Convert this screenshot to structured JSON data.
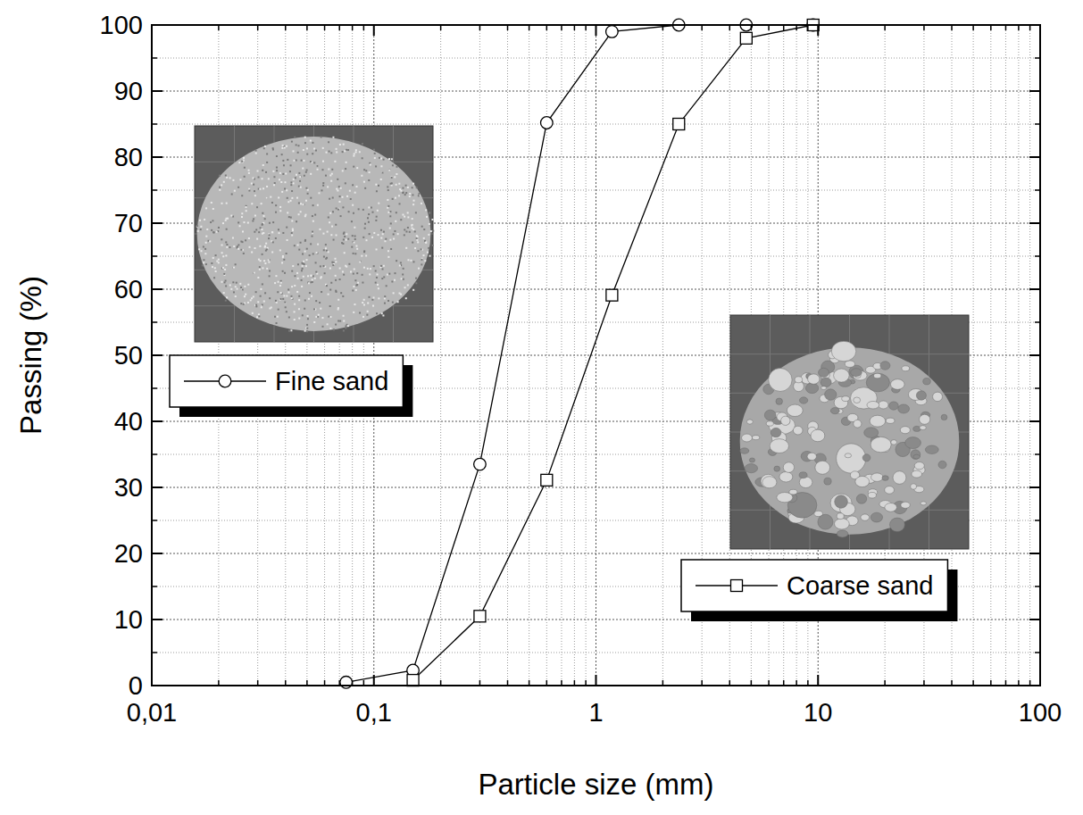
{
  "chart_data": {
    "type": "line",
    "x_label": "Particle size (mm)",
    "y_label": "Passing (%)",
    "log": "x",
    "grid": true,
    "legend": "upper left",
    "xlim": [
      0.01,
      100
    ],
    "xticks": [
      {
        "value": 0.01,
        "label": "0,01"
      },
      {
        "value": 0.1,
        "label": "0,1"
      },
      1,
      10,
      100
    ],
    "ylim": [
      0,
      100
    ],
    "yticks": [
      0,
      10,
      20,
      30,
      40,
      50,
      60,
      70,
      80,
      90,
      100
    ],
    "x": [
      0.075,
      0.15,
      0.3,
      0.6,
      1.18,
      2.36,
      4.75,
      9.5
    ],
    "series": [
      {
        "name": "Fine sand",
        "color": "#000000",
        "marker": "circle",
        "line_style": "solid",
        "values": [
          0.5,
          2.3,
          33.5,
          85.2,
          99,
          100,
          100,
          100
        ]
      },
      {
        "name": "Coarse sand",
        "color": "#000000",
        "marker": "square",
        "line_style": "solid",
        "values": [
          null,
          0.8,
          10.5,
          31.1,
          59.1,
          85,
          98,
          100
        ]
      }
    ]
  }
}
